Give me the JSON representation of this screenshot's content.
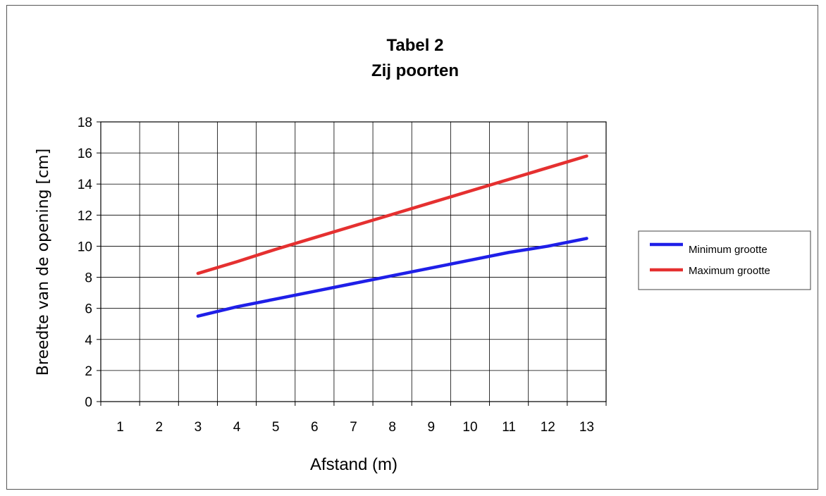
{
  "chart_data": {
    "type": "line",
    "title": [
      "Tabel 2",
      "Zij poorten"
    ],
    "xlabel": "Afstand (m)",
    "ylabel": "Breedte van de opening [cm]",
    "categories": [
      1,
      2,
      3,
      4,
      5,
      6,
      7,
      8,
      9,
      10,
      11,
      12,
      13
    ],
    "yticks": [
      0,
      2,
      4,
      6,
      8,
      10,
      12,
      14,
      16,
      18
    ],
    "ylim": [
      0,
      18
    ],
    "grid": true,
    "legend_position": "right",
    "series": [
      {
        "name": "Minimum grootte",
        "color": "#1f1fe8",
        "x": [
          3,
          4,
          5,
          6,
          7,
          8,
          9,
          10,
          11,
          12,
          13
        ],
        "values": [
          5.5,
          6.1,
          6.6,
          7.1,
          7.6,
          8.1,
          8.6,
          9.1,
          9.6,
          10.0,
          10.5
        ]
      },
      {
        "name": "Maximum grootte",
        "color": "#e53030",
        "x": [
          3,
          4,
          5,
          6,
          7,
          8,
          9,
          10,
          11,
          12,
          13
        ],
        "values": [
          8.25,
          9.0,
          9.8,
          10.55,
          11.3,
          12.05,
          12.8,
          13.55,
          14.3,
          15.05,
          15.8
        ]
      }
    ]
  }
}
